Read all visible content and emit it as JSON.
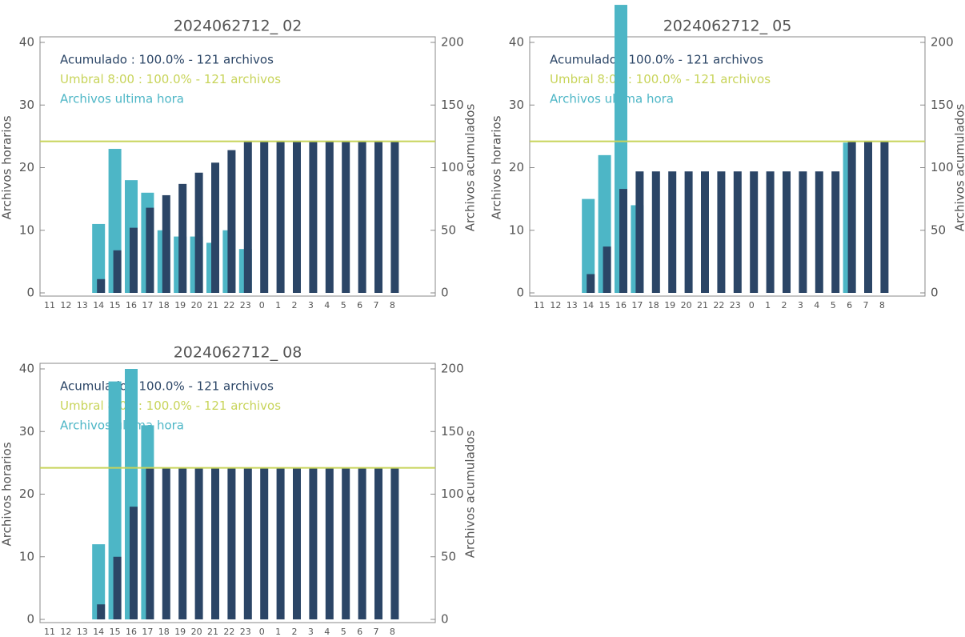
{
  "chart_data": [
    {
      "type": "bar",
      "title": "2024062712_ 02",
      "categories": [
        "11",
        "12",
        "13",
        "14",
        "15",
        "16",
        "17",
        "18",
        "19",
        "20",
        "21",
        "22",
        "23",
        "0",
        "1",
        "2",
        "3",
        "4",
        "5",
        "6",
        "7",
        "8"
      ],
      "ylabel": "Archivos horarios",
      "y2label": "Archivos acumulados",
      "ylim": [
        0,
        40
      ],
      "yticks": [
        0,
        10,
        20,
        30,
        40
      ],
      "y2lim": [
        0,
        200
      ],
      "y2ticks": [
        0,
        50,
        100,
        150,
        200
      ],
      "series": [
        {
          "name": "Archivos ultima hora",
          "color": "#4db6c6",
          "values": [
            0,
            0,
            0,
            11,
            23,
            18,
            16,
            10,
            9,
            9,
            8,
            10,
            7,
            0,
            0,
            0,
            0,
            0,
            0,
            0,
            0,
            0
          ]
        },
        {
          "name": "Acumulado : 100.0% - 121 archivos",
          "color": "#2b4566",
          "axis": "y2",
          "values": [
            0,
            0,
            0,
            11,
            34,
            52,
            68,
            78,
            87,
            96,
            104,
            114,
            121,
            121,
            121,
            121,
            121,
            121,
            121,
            121,
            121,
            121
          ]
        }
      ],
      "threshold": {
        "name": "Umbral 8:00 : 100.0% - 121 archivos",
        "value": 121,
        "axis": "y2",
        "color": "#c8d45a"
      }
    },
    {
      "type": "bar",
      "title": "2024062712_ 05",
      "categories": [
        "11",
        "12",
        "13",
        "14",
        "15",
        "16",
        "17",
        "18",
        "19",
        "20",
        "21",
        "22",
        "23",
        "0",
        "1",
        "2",
        "3",
        "4",
        "5",
        "6",
        "7",
        "8"
      ],
      "ylabel": "Archivos horarios",
      "y2label": "Archivos acumulados",
      "ylim": [
        0,
        40
      ],
      "yticks": [
        0,
        10,
        20,
        30,
        40
      ],
      "y2lim": [
        0,
        200
      ],
      "y2ticks": [
        0,
        50,
        100,
        150,
        200
      ],
      "series": [
        {
          "name": "Archivos ultima hora",
          "color": "#4db6c6",
          "values": [
            0,
            0,
            0,
            15,
            22,
            46,
            14,
            0,
            0,
            0,
            0,
            0,
            0,
            0,
            0,
            0,
            0,
            0,
            0,
            24,
            0,
            0
          ]
        },
        {
          "name": "Acumulado : 100.0% - 121 archivos",
          "color": "#2b4566",
          "axis": "y2",
          "values": [
            0,
            0,
            0,
            15,
            37,
            83,
            97,
            97,
            97,
            97,
            97,
            97,
            97,
            97,
            97,
            97,
            97,
            97,
            97,
            121,
            121,
            121
          ]
        }
      ],
      "threshold": {
        "name": "Umbral 8:00 : 100.0% - 121 archivos",
        "value": 121,
        "axis": "y2",
        "color": "#c8d45a"
      }
    },
    {
      "type": "bar",
      "title": "2024062712_ 08",
      "categories": [
        "11",
        "12",
        "13",
        "14",
        "15",
        "16",
        "17",
        "18",
        "19",
        "20",
        "21",
        "22",
        "23",
        "0",
        "1",
        "2",
        "3",
        "4",
        "5",
        "6",
        "7",
        "8"
      ],
      "ylabel": "Archivos horarios",
      "y2label": "Archivos acumulados",
      "ylim": [
        0,
        40
      ],
      "yticks": [
        0,
        10,
        20,
        30,
        40
      ],
      "y2lim": [
        0,
        200
      ],
      "y2ticks": [
        0,
        50,
        100,
        150,
        200
      ],
      "series": [
        {
          "name": "Archivos ultima hora",
          "color": "#4db6c6",
          "values": [
            0,
            0,
            0,
            12,
            38,
            40,
            31,
            0,
            0,
            0,
            0,
            0,
            0,
            0,
            0,
            0,
            0,
            0,
            0,
            0,
            0,
            0
          ]
        },
        {
          "name": "Acumulado : 100.0% - 121 archivos",
          "color": "#2b4566",
          "axis": "y2",
          "values": [
            0,
            0,
            0,
            12,
            50,
            90,
            121,
            121,
            121,
            121,
            121,
            121,
            121,
            121,
            121,
            121,
            121,
            121,
            121,
            121,
            121,
            121
          ]
        }
      ],
      "threshold": {
        "name": "Umbral 8:00 : 100.0% - 121 archivos",
        "value": 121,
        "axis": "y2",
        "color": "#c8d45a"
      }
    }
  ]
}
